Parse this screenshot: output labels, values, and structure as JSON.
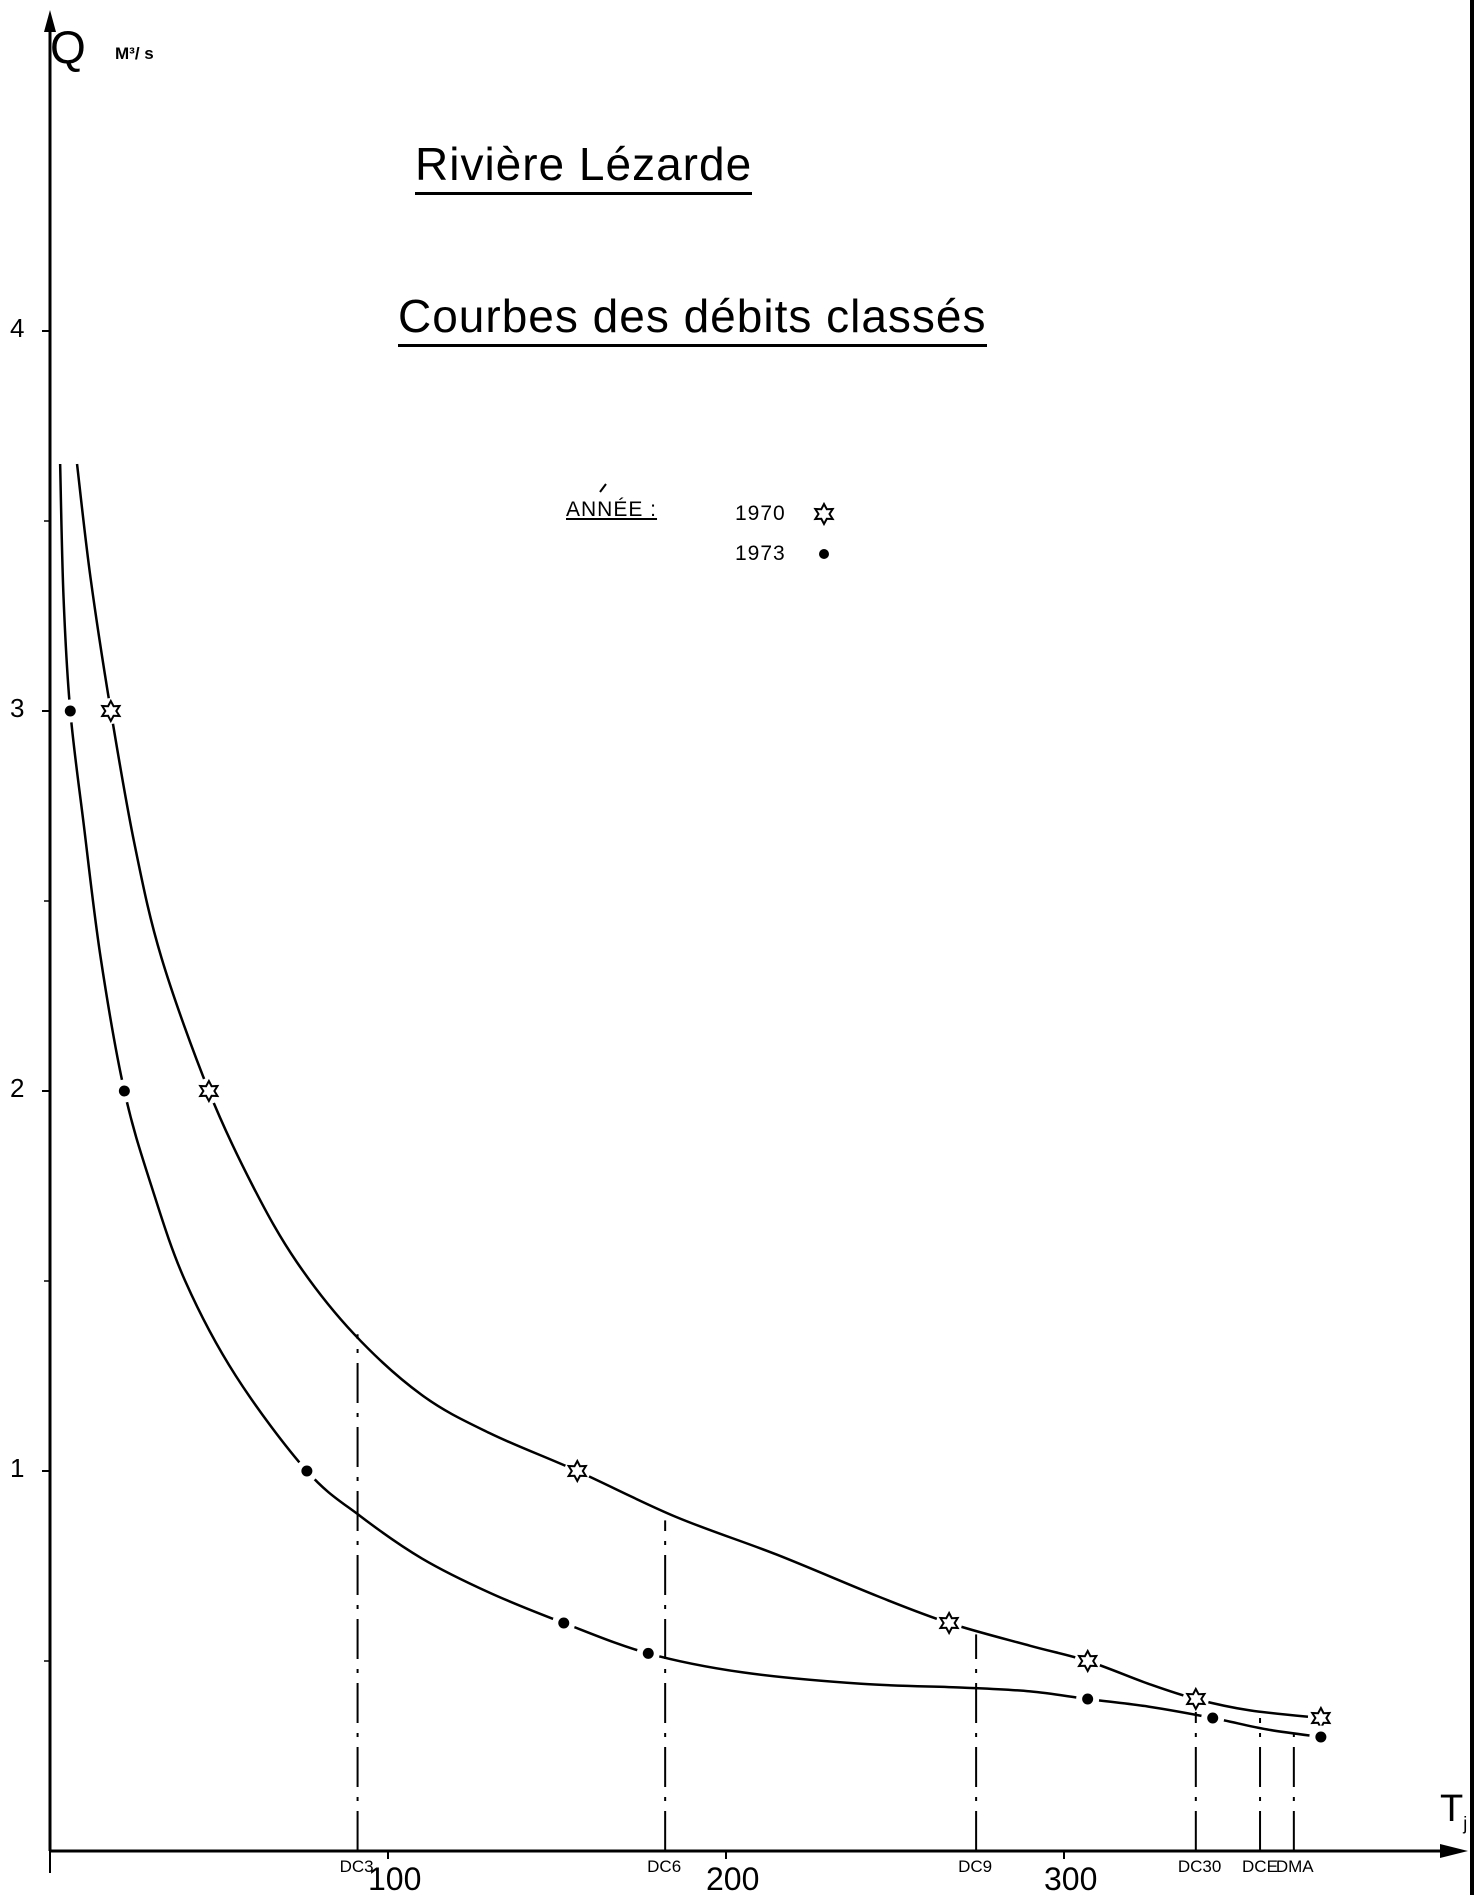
{
  "chart_data": {
    "type": "line",
    "title": "Rivière Lézarde",
    "subtitle": "Courbes des débits classés",
    "ylabel": "Q",
    "yunit": "M3/s",
    "xlabel": "Tj",
    "xlim": [
      0,
      365
    ],
    "ylim": [
      0,
      4.75
    ],
    "y_ticks": [
      "1",
      "2",
      "3",
      "4"
    ],
    "x_ticks": [
      "100",
      "200",
      "300"
    ],
    "legend": {
      "heading": "ANNÉE :",
      "placement": "top-center"
    },
    "series": [
      {
        "name": "1970",
        "marker": "star",
        "points": [
          [
            18,
            3.0
          ],
          [
            47,
            2.0
          ],
          [
            156,
            1.0
          ],
          [
            266,
            0.6
          ],
          [
            307,
            0.5
          ],
          [
            339,
            0.4
          ],
          [
            376,
            0.35
          ]
        ],
        "curve": [
          [
            8,
            3.65
          ],
          [
            12,
            3.35
          ],
          [
            18,
            3.0
          ],
          [
            25,
            2.65
          ],
          [
            33,
            2.35
          ],
          [
            47,
            2.0
          ],
          [
            60,
            1.75
          ],
          [
            73,
            1.55
          ],
          [
            90,
            1.36
          ],
          [
            110,
            1.2
          ],
          [
            130,
            1.1
          ],
          [
            156,
            1.0
          ],
          [
            185,
            0.88
          ],
          [
            215,
            0.78
          ],
          [
            245,
            0.67
          ],
          [
            266,
            0.6
          ],
          [
            290,
            0.54
          ],
          [
            307,
            0.5
          ],
          [
            325,
            0.44
          ],
          [
            339,
            0.4
          ],
          [
            355,
            0.37
          ],
          [
            376,
            0.35
          ]
        ]
      },
      {
        "name": "1973",
        "marker": "dot",
        "points": [
          [
            6,
            3.0
          ],
          [
            22,
            2.0
          ],
          [
            76,
            1.0
          ],
          [
            152,
            0.6
          ],
          [
            177,
            0.52
          ],
          [
            307,
            0.4
          ],
          [
            344,
            0.35
          ],
          [
            376,
            0.3
          ]
        ],
        "curve": [
          [
            3,
            3.65
          ],
          [
            4,
            3.3
          ],
          [
            6,
            3.0
          ],
          [
            10,
            2.7
          ],
          [
            15,
            2.35
          ],
          [
            22,
            2.0
          ],
          [
            30,
            1.75
          ],
          [
            40,
            1.5
          ],
          [
            55,
            1.25
          ],
          [
            76,
            1.0
          ],
          [
            92,
            0.88
          ],
          [
            110,
            0.77
          ],
          [
            130,
            0.68
          ],
          [
            152,
            0.6
          ],
          [
            177,
            0.52
          ],
          [
            205,
            0.47
          ],
          [
            240,
            0.44
          ],
          [
            270,
            0.43
          ],
          [
            290,
            0.42
          ],
          [
            307,
            0.4
          ],
          [
            325,
            0.38
          ],
          [
            344,
            0.35
          ],
          [
            360,
            0.32
          ],
          [
            376,
            0.3
          ]
        ]
      }
    ],
    "reference_lines": [
      {
        "label": "DC3",
        "x": 91,
        "y": 1.36
      },
      {
        "label": "DC6",
        "x": 182,
        "y": 0.87
      },
      {
        "label": "DC9",
        "x": 274,
        "y": 0.57
      },
      {
        "label": "DC30",
        "x": 339,
        "y": 0.4
      },
      {
        "label": "DCE",
        "x": 358,
        "y": 0.35
      },
      {
        "label": "DMA",
        "x": 368,
        "y": 0.33
      }
    ]
  },
  "legend_years": {
    "y1970": "1970",
    "y1973": "1973"
  },
  "axis_unit_label": "M³/ s",
  "axis_x_label": "T",
  "axis_x_sub": "j"
}
